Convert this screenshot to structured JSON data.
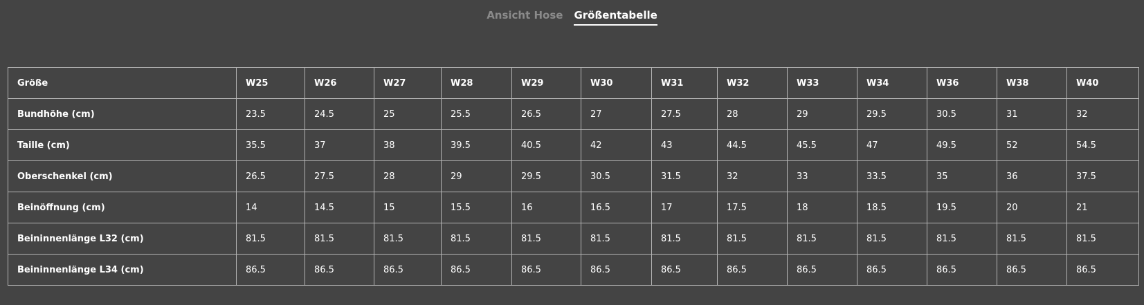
{
  "tabs": [
    {
      "label": "Ansicht Hose",
      "active": false
    },
    {
      "label": "Größentabelle",
      "active": true
    }
  ],
  "size_table": {
    "corner_label": "Größe",
    "columns": [
      "W25",
      "W26",
      "W27",
      "W28",
      "W29",
      "W30",
      "W31",
      "W32",
      "W33",
      "W34",
      "W36",
      "W38",
      "W40"
    ],
    "rows": [
      {
        "label": "Bundhöhe (cm)",
        "values": [
          "23.5",
          "24.5",
          "25",
          "25.5",
          "26.5",
          "27",
          "27.5",
          "28",
          "29",
          "29.5",
          "30.5",
          "31",
          "32"
        ]
      },
      {
        "label": "Taille (cm)",
        "values": [
          "35.5",
          "37",
          "38",
          "39.5",
          "40.5",
          "42",
          "43",
          "44.5",
          "45.5",
          "47",
          "49.5",
          "52",
          "54.5"
        ]
      },
      {
        "label": "Oberschenkel (cm)",
        "values": [
          "26.5",
          "27.5",
          "28",
          "29",
          "29.5",
          "30.5",
          "31.5",
          "32",
          "33",
          "33.5",
          "35",
          "36",
          "37.5"
        ]
      },
      {
        "label": "Beinöffnung (cm)",
        "values": [
          "14",
          "14.5",
          "15",
          "15.5",
          "16",
          "16.5",
          "17",
          "17.5",
          "18",
          "18.5",
          "19.5",
          "20",
          "21"
        ]
      },
      {
        "label": "Beininnenlänge L32 (cm)",
        "values": [
          "81.5",
          "81.5",
          "81.5",
          "81.5",
          "81.5",
          "81.5",
          "81.5",
          "81.5",
          "81.5",
          "81.5",
          "81.5",
          "81.5",
          "81.5"
        ]
      },
      {
        "label": "Beininnenlänge L34 (cm)",
        "values": [
          "86.5",
          "86.5",
          "86.5",
          "86.5",
          "86.5",
          "86.5",
          "86.5",
          "86.5",
          "86.5",
          "86.5",
          "86.5",
          "86.5",
          "86.5"
        ]
      }
    ]
  }
}
